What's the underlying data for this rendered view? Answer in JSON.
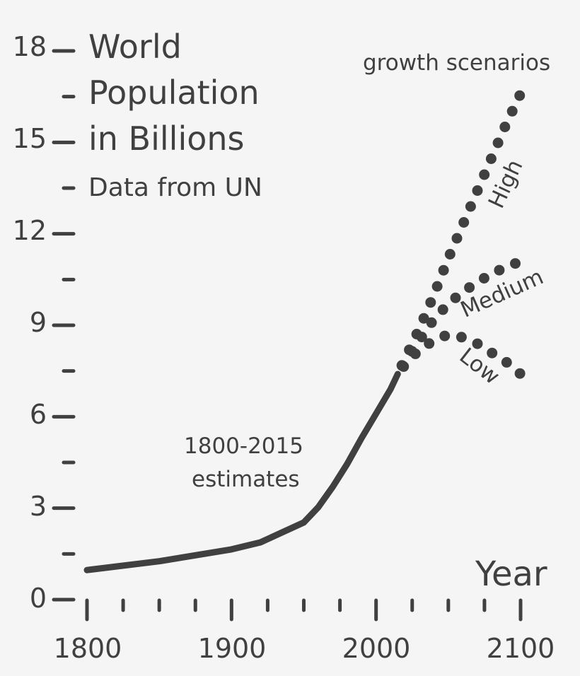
{
  "chart_data": {
    "type": "line",
    "title": "World Population in Billions",
    "title_lines": [
      "World",
      "Population",
      "in Billions"
    ],
    "subtitle": "Data from UN",
    "xlabel": "Year",
    "ylabel": "",
    "xlim": [
      1800,
      2100
    ],
    "ylim": [
      0,
      18
    ],
    "x_ticks_major": [
      1800,
      1900,
      2000,
      2100
    ],
    "x_tick_labels": [
      "1800",
      "1900",
      "2000",
      "2100"
    ],
    "x_ticks_minor": [
      1825,
      1850,
      1875,
      1925,
      1950,
      1975,
      2025,
      2050,
      2075
    ],
    "y_ticks_major": [
      0,
      3,
      6,
      9,
      12,
      15,
      18
    ],
    "y_tick_labels": [
      "0",
      "3",
      "6",
      "9",
      "12",
      "15",
      "18"
    ],
    "y_ticks_minor": [
      1.5,
      4.5,
      7.5,
      10.5,
      13.5,
      16.5
    ],
    "grid": false,
    "annotations": {
      "estimates": [
        "1800-2015",
        "estimates"
      ],
      "scenarios_header": "growth scenarios",
      "high": "High",
      "medium": "Medium",
      "low": "Low"
    },
    "series": [
      {
        "name": "1800-2015 estimates",
        "style": "solid",
        "x": [
          1800,
          1850,
          1900,
          1920,
          1950,
          1960,
          1970,
          1980,
          1990,
          2000,
          2010,
          2015
        ],
        "y": [
          0.97,
          1.26,
          1.65,
          1.88,
          2.53,
          3.03,
          3.7,
          4.45,
          5.3,
          6.1,
          6.9,
          7.4
        ]
      },
      {
        "name": "High",
        "style": "dotted",
        "x": [
          2015,
          2020,
          2030,
          2040,
          2050,
          2060,
          2070,
          2080,
          2090,
          2100
        ],
        "y": [
          7.4,
          7.9,
          8.9,
          10.0,
          11.2,
          12.3,
          13.4,
          14.5,
          15.6,
          16.6
        ]
      },
      {
        "name": "Medium",
        "style": "dotted",
        "x": [
          2015,
          2020,
          2030,
          2040,
          2050,
          2060,
          2070,
          2080,
          2090,
          2100
        ],
        "y": [
          7.4,
          7.8,
          8.5,
          9.2,
          9.7,
          10.1,
          10.4,
          10.7,
          10.9,
          11.1
        ]
      },
      {
        "name": "Low",
        "style": "dotted",
        "x": [
          2015,
          2020,
          2030,
          2040,
          2050,
          2060,
          2070,
          2080,
          2090,
          2100
        ],
        "y": [
          7.4,
          7.7,
          8.2,
          8.5,
          8.7,
          8.6,
          8.4,
          8.1,
          7.8,
          7.4
        ]
      }
    ]
  },
  "colors": {
    "background": "#f5f5f5",
    "ink": "#404040"
  }
}
